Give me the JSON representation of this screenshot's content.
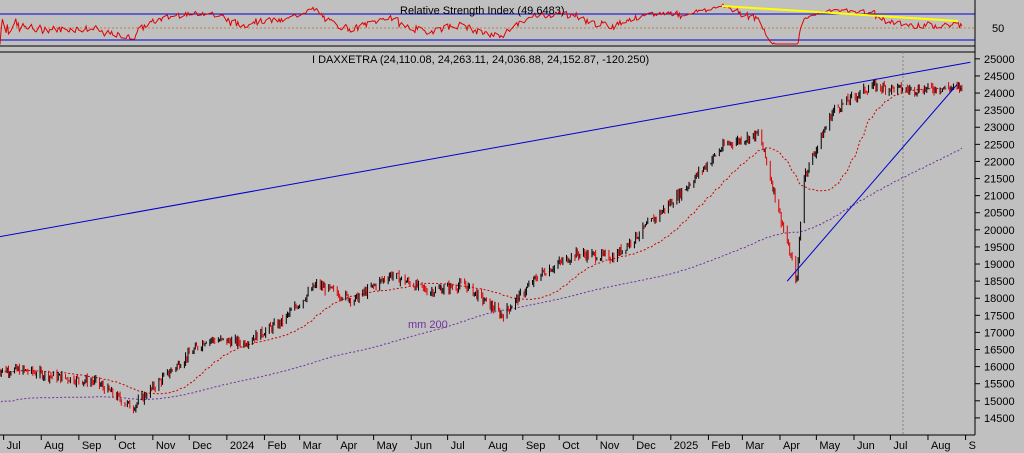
{
  "chart_data": [
    {
      "type": "line",
      "title": "Relative Strength Index (49.6483)",
      "y_ticks": [
        50
      ],
      "ylim": [
        0,
        100
      ],
      "reference_lines": [
        70,
        50,
        30
      ],
      "colors": {
        "rsi": "#e00000",
        "trendline": "#ffff00",
        "ref": "#0000cc"
      }
    },
    {
      "type": "candlestick",
      "title": "I DAXXETRA (24,110.08, 24,263.11, 24,036.88, 24,152.87, -120.250)",
      "ohlc_last": {
        "open": 24110.08,
        "high": 24263.11,
        "low": 24036.88,
        "close": 24152.87,
        "change": -120.25
      },
      "ylim": [
        14000,
        25200
      ],
      "y_ticks": [
        14500,
        15000,
        15500,
        16000,
        16500,
        17000,
        17500,
        18000,
        18500,
        19000,
        19500,
        20000,
        20500,
        21000,
        21500,
        22000,
        22500,
        23000,
        23500,
        24000,
        24500,
        25000
      ],
      "x_labels": [
        "Jul",
        "Aug",
        "Sep",
        "Oct",
        "Nov",
        "Dec",
        "2024",
        "Feb",
        "Mar",
        "Apr",
        "May",
        "Jun",
        "Jul",
        "Aug",
        "Sep",
        "Oct",
        "Nov",
        "Dec",
        "2025",
        "Feb",
        "Mar",
        "Apr",
        "May",
        "Jun",
        "Jul",
        "Aug",
        "S"
      ],
      "annotation": "mm 200",
      "key_points": [
        {
          "date": "2023-07",
          "close": 15900
        },
        {
          "date": "2023-08",
          "close": 15700
        },
        {
          "date": "2023-09",
          "close": 15550
        },
        {
          "date": "2023-10",
          "close": 14800
        },
        {
          "date": "2023-11",
          "close": 15850
        },
        {
          "date": "2023-12",
          "close": 16800
        },
        {
          "date": "2024-01",
          "close": 16700
        },
        {
          "date": "2024-02",
          "close": 17300
        },
        {
          "date": "2024-03",
          "close": 18400
        },
        {
          "date": "2024-04",
          "close": 17950
        },
        {
          "date": "2024-05",
          "close": 18700
        },
        {
          "date": "2024-06",
          "close": 18200
        },
        {
          "date": "2024-07",
          "close": 18400
        },
        {
          "date": "2024-08",
          "close": 17500
        },
        {
          "date": "2024-09",
          "close": 18700
        },
        {
          "date": "2024-10",
          "close": 19300
        },
        {
          "date": "2024-11",
          "close": 19200
        },
        {
          "date": "2024-12",
          "close": 20200
        },
        {
          "date": "2025-01",
          "close": 21300
        },
        {
          "date": "2025-02",
          "close": 22500
        },
        {
          "date": "2025-03",
          "close": 22800
        },
        {
          "date": "2025-04",
          "close": 18500
        },
        {
          "date": "2025-04-20",
          "close": 21500
        },
        {
          "date": "2025-05",
          "close": 23500
        },
        {
          "date": "2025-06",
          "close": 24200
        },
        {
          "date": "2025-07",
          "close": 24100
        },
        {
          "date": "2025-08",
          "close": 24150
        }
      ],
      "series": [
        {
          "role": "moving-average-short",
          "color": "#d00000"
        },
        {
          "role": "moving-average-200",
          "color": "#7030a0"
        }
      ],
      "trendlines": [
        {
          "from": {
            "date": "2023-06-20",
            "value": 19750
          },
          "to": {
            "date": "2025-09-05",
            "value": 24900
          },
          "color": "#0000cc"
        },
        {
          "from": {
            "date": "2025-04-07",
            "value": 18500
          },
          "to": {
            "date": "2025-08-25",
            "value": 24250
          },
          "color": "#0000cc"
        }
      ]
    }
  ]
}
